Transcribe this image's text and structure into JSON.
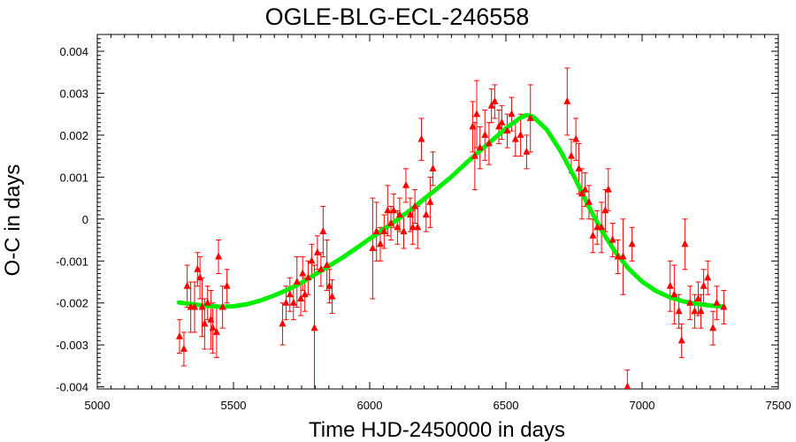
{
  "chart_data": {
    "type": "scatter",
    "title": "OGLE-BLG-ECL-246558",
    "xlabel": "Time HJD-2450000 in days",
    "ylabel": "O-C in days",
    "xlim": [
      5000,
      7500
    ],
    "ylim": [
      -0.00405,
      0.0044
    ],
    "x_ticks": [
      "5000",
      "5500",
      "6000",
      "6500",
      "7000",
      "7500"
    ],
    "y_ticks": [
      "0.004",
      "0.003",
      "0.002",
      "0.001",
      "0",
      "-0.001",
      "-0.002",
      "-0.003",
      "-0.004"
    ],
    "grid": false,
    "colors": {
      "points": "#ff0000",
      "fit": "#00ee00"
    },
    "series": [
      {
        "type": "scatter_with_errorbars",
        "x": [
          5302,
          5318,
          5330,
          5343,
          5357,
          5368,
          5377,
          5385,
          5394,
          5405,
          5417,
          5424,
          5438,
          5445,
          5460,
          5476,
          5680,
          5693,
          5707,
          5720,
          5733,
          5747,
          5754,
          5762,
          5774,
          5787,
          5797,
          5808,
          5821,
          5829,
          5843,
          5852,
          5862,
          6011,
          6025,
          6039,
          6053,
          6066,
          6078,
          6088,
          6102,
          6110,
          6125,
          6133,
          6149,
          6158,
          6166,
          6176,
          6190,
          6207,
          6222,
          6232,
          6378,
          6386,
          6393,
          6405,
          6423,
          6438,
          6447,
          6459,
          6474,
          6485,
          6505,
          6521,
          6535,
          6554,
          6576,
          6590,
          6725,
          6740,
          6757,
          6768,
          6779,
          6791,
          6805,
          6819,
          6835,
          6851,
          6865,
          6876,
          6892,
          6911,
          6930,
          6946,
          6963,
          7103,
          7118,
          7135,
          7145,
          7157,
          7176,
          7193,
          7206,
          7216,
          7226,
          7241,
          7260,
          7274,
          7300
        ],
        "y": [
          -0.0028,
          -0.0031,
          -0.0016,
          -0.0021,
          -0.0021,
          -0.0012,
          -0.0014,
          -0.0021,
          -0.0025,
          -0.002,
          -0.0024,
          -0.0026,
          -0.0027,
          -0.0009,
          -0.0021,
          -0.0016,
          -0.0025,
          -0.002,
          -0.0018,
          -0.002,
          -0.0015,
          -0.0019,
          -0.0013,
          -0.0018,
          -0.0014,
          -0.001,
          -0.0026,
          -0.0008,
          -0.0012,
          -0.0003,
          -0.0011,
          -0.0016,
          -0.00185,
          -0.0007,
          -0.0003,
          -0.0006,
          -0.0003,
          0.0002,
          -0.0001,
          0.0002,
          -0.0002,
          0.0001,
          -0.0003,
          0.0008,
          0.0001,
          -0.0002,
          0.0003,
          -0.0002,
          0.0019,
          0.0001,
          0.0004,
          0.0012,
          0.0022,
          0.0015,
          0.0025,
          0.0017,
          0.002,
          0.0018,
          0.0027,
          0.0028,
          0.0022,
          0.0023,
          0.0021,
          0.0025,
          0.0019,
          0.002,
          0.0016,
          0.0024,
          0.0028,
          0.0015,
          0.0019,
          0.0012,
          0.0006,
          0.0007,
          0.0004,
          -0.0004,
          -0.0002,
          -0.0002,
          0.0002,
          0.0007,
          -0.0005,
          -0.0009,
          -0.0009,
          -0.004,
          -0.0006,
          -0.0016,
          -0.0018,
          -0.0022,
          -0.0029,
          -0.0006,
          -0.002,
          -0.0022,
          -0.0019,
          -0.0022,
          -0.0016,
          -0.0014,
          -0.0026,
          -0.002,
          -0.0021
        ],
        "err": [
          0.0004,
          0.0004,
          0.0005,
          0.0006,
          0.0006,
          0.0004,
          0.0005,
          0.0007,
          0.0006,
          0.0004,
          0.0007,
          0.0006,
          0.0006,
          0.0004,
          0.0005,
          0.0004,
          0.0005,
          0.0004,
          0.0004,
          0.0004,
          0.0006,
          0.0004,
          0.0004,
          0.0004,
          0.0004,
          0.0004,
          0.0015,
          0.0004,
          0.0004,
          0.0006,
          0.0006,
          0.0004,
          0.0004,
          0.0012,
          0.0007,
          0.0004,
          0.0004,
          0.0006,
          0.0004,
          0.0004,
          0.0004,
          0.0004,
          0.0004,
          0.0004,
          0.0004,
          0.0004,
          0.0004,
          0.0005,
          0.0005,
          0.0004,
          0.0006,
          0.0004,
          0.0006,
          0.0008,
          0.0008,
          0.0005,
          0.0006,
          0.0005,
          0.0004,
          0.0004,
          0.0004,
          0.0004,
          0.0004,
          0.0004,
          0.0004,
          0.0005,
          0.0004,
          0.0008,
          0.0008,
          0.0004,
          0.0005,
          0.0006,
          0.0006,
          0.0004,
          0.0004,
          0.0004,
          0.0004,
          0.0006,
          0.0005,
          0.0005,
          0.0004,
          0.0004,
          0.0009,
          0.0004,
          0.0004,
          0.0006,
          0.0007,
          0.0004,
          0.0004,
          0.0006,
          0.0004,
          0.0004,
          0.0004,
          0.0004,
          0.0004,
          0.0004,
          0.0004,
          0.0004,
          0.0004
        ]
      },
      {
        "type": "fit_curve",
        "x": [
          5300,
          5350,
          5400,
          5450,
          5500,
          5550,
          5600,
          5650,
          5700,
          5750,
          5800,
          5850,
          5900,
          5950,
          6000,
          6050,
          6100,
          6150,
          6200,
          6250,
          6300,
          6350,
          6400,
          6450,
          6500,
          6550,
          6575,
          6600,
          6650,
          6700,
          6750,
          6800,
          6850,
          6900,
          6950,
          7000,
          7050,
          7100,
          7150,
          7200,
          7250,
          7300
        ],
        "y": [
          -0.00199,
          -0.00203,
          -0.00207,
          -0.00209,
          -0.00208,
          -0.00203,
          -0.00194,
          -0.00182,
          -0.00168,
          -0.00152,
          -0.00132,
          -0.00112,
          -0.00092,
          -0.0007,
          -0.00047,
          -0.00025,
          -2e-05,
          0.00022,
          0.00048,
          0.00074,
          0.00101,
          0.00131,
          0.0016,
          0.00188,
          0.00216,
          0.0024,
          0.00248,
          0.00244,
          0.00213,
          0.00163,
          0.00102,
          0.00035,
          -0.00026,
          -0.00077,
          -0.00118,
          -0.00149,
          -0.00171,
          -0.00186,
          -0.00196,
          -0.00202,
          -0.00206,
          -0.00209
        ]
      }
    ]
  }
}
